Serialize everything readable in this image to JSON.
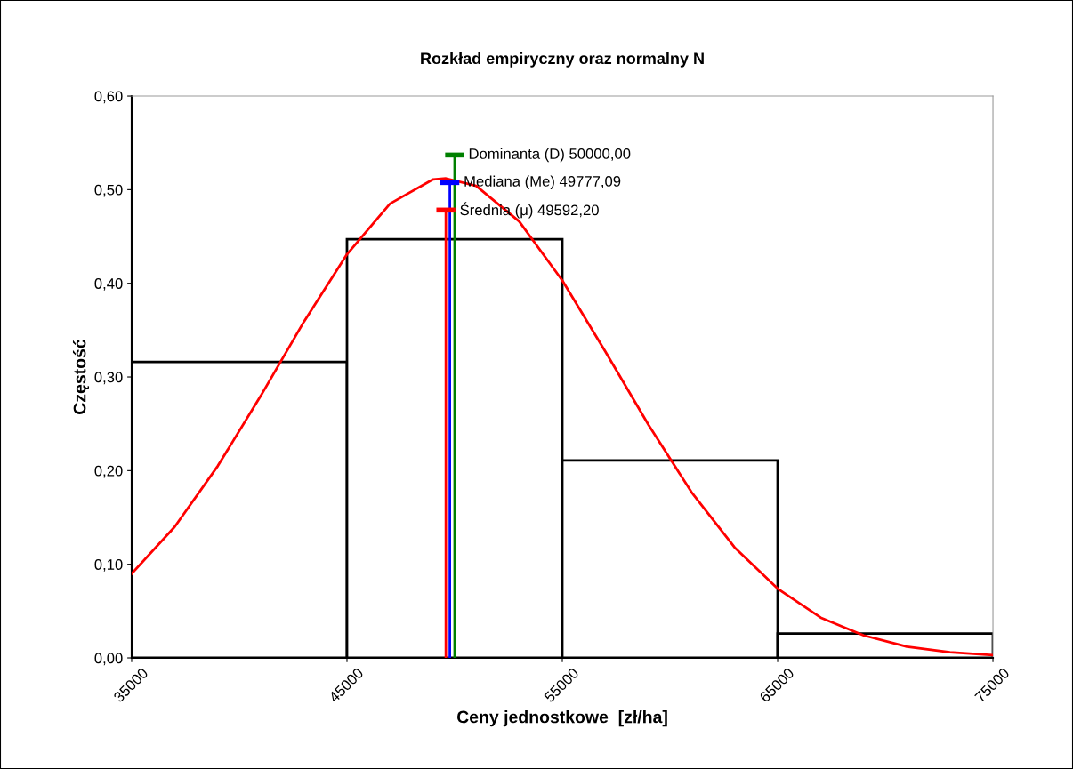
{
  "chart_data": {
    "type": "histogram",
    "title": "Rozkład empiryczny oraz normalny N",
    "xlabel": "Ceny jednostkowe  [zł/ha]",
    "ylabel": "Częstość",
    "series": [
      {
        "bins": [
          35000,
          45000,
          55000,
          65000,
          75000
        ],
        "values": [
          0.316,
          0.447,
          0.211,
          0.026
        ],
        "color": "#000000"
      },
      {
        "type": "line",
        "color": "#ff0000",
        "x": [
          35000,
          37000,
          39000,
          41000,
          43000,
          45000,
          47000,
          49000,
          49600,
          51000,
          53000,
          55000,
          57000,
          59000,
          61000,
          63000,
          65000,
          67000,
          69000,
          71000,
          73000,
          75000
        ],
        "values": [
          0.09,
          0.14,
          0.205,
          0.28,
          0.359,
          0.431,
          0.485,
          0.511,
          0.512,
          0.504,
          0.466,
          0.403,
          0.327,
          0.249,
          0.177,
          0.118,
          0.074,
          0.043,
          0.024,
          0.012,
          0.006,
          0.003
        ]
      }
    ],
    "ref_lines": [
      {
        "axis": "x",
        "value": 50000,
        "label": "Dominanta (D) 50000,00",
        "color": "#008000"
      },
      {
        "axis": "x",
        "value": 49777.09,
        "label": "Mediana (Me) 49777,09",
        "color": "#0000ff"
      },
      {
        "axis": "x",
        "value": 49592.2,
        "label": "Średnia (μ) 49592,20",
        "color": "#ff0000"
      }
    ],
    "xlim": [
      35000,
      75000
    ],
    "xticks": [
      35000,
      45000,
      55000,
      65000,
      75000
    ],
    "ylim": [
      0,
      0.6
    ],
    "yticks": [
      {
        "value": 0,
        "label": "0,00"
      },
      {
        "value": 0.1,
        "label": "0,10"
      },
      {
        "value": 0.2,
        "label": "0,20"
      },
      {
        "value": 0.3,
        "label": "0,30"
      },
      {
        "value": 0.4,
        "label": "0,40"
      },
      {
        "value": 0.5,
        "label": "0,50"
      },
      {
        "value": 0.6,
        "label": "0,60"
      }
    ],
    "grid": false,
    "legend": false
  }
}
